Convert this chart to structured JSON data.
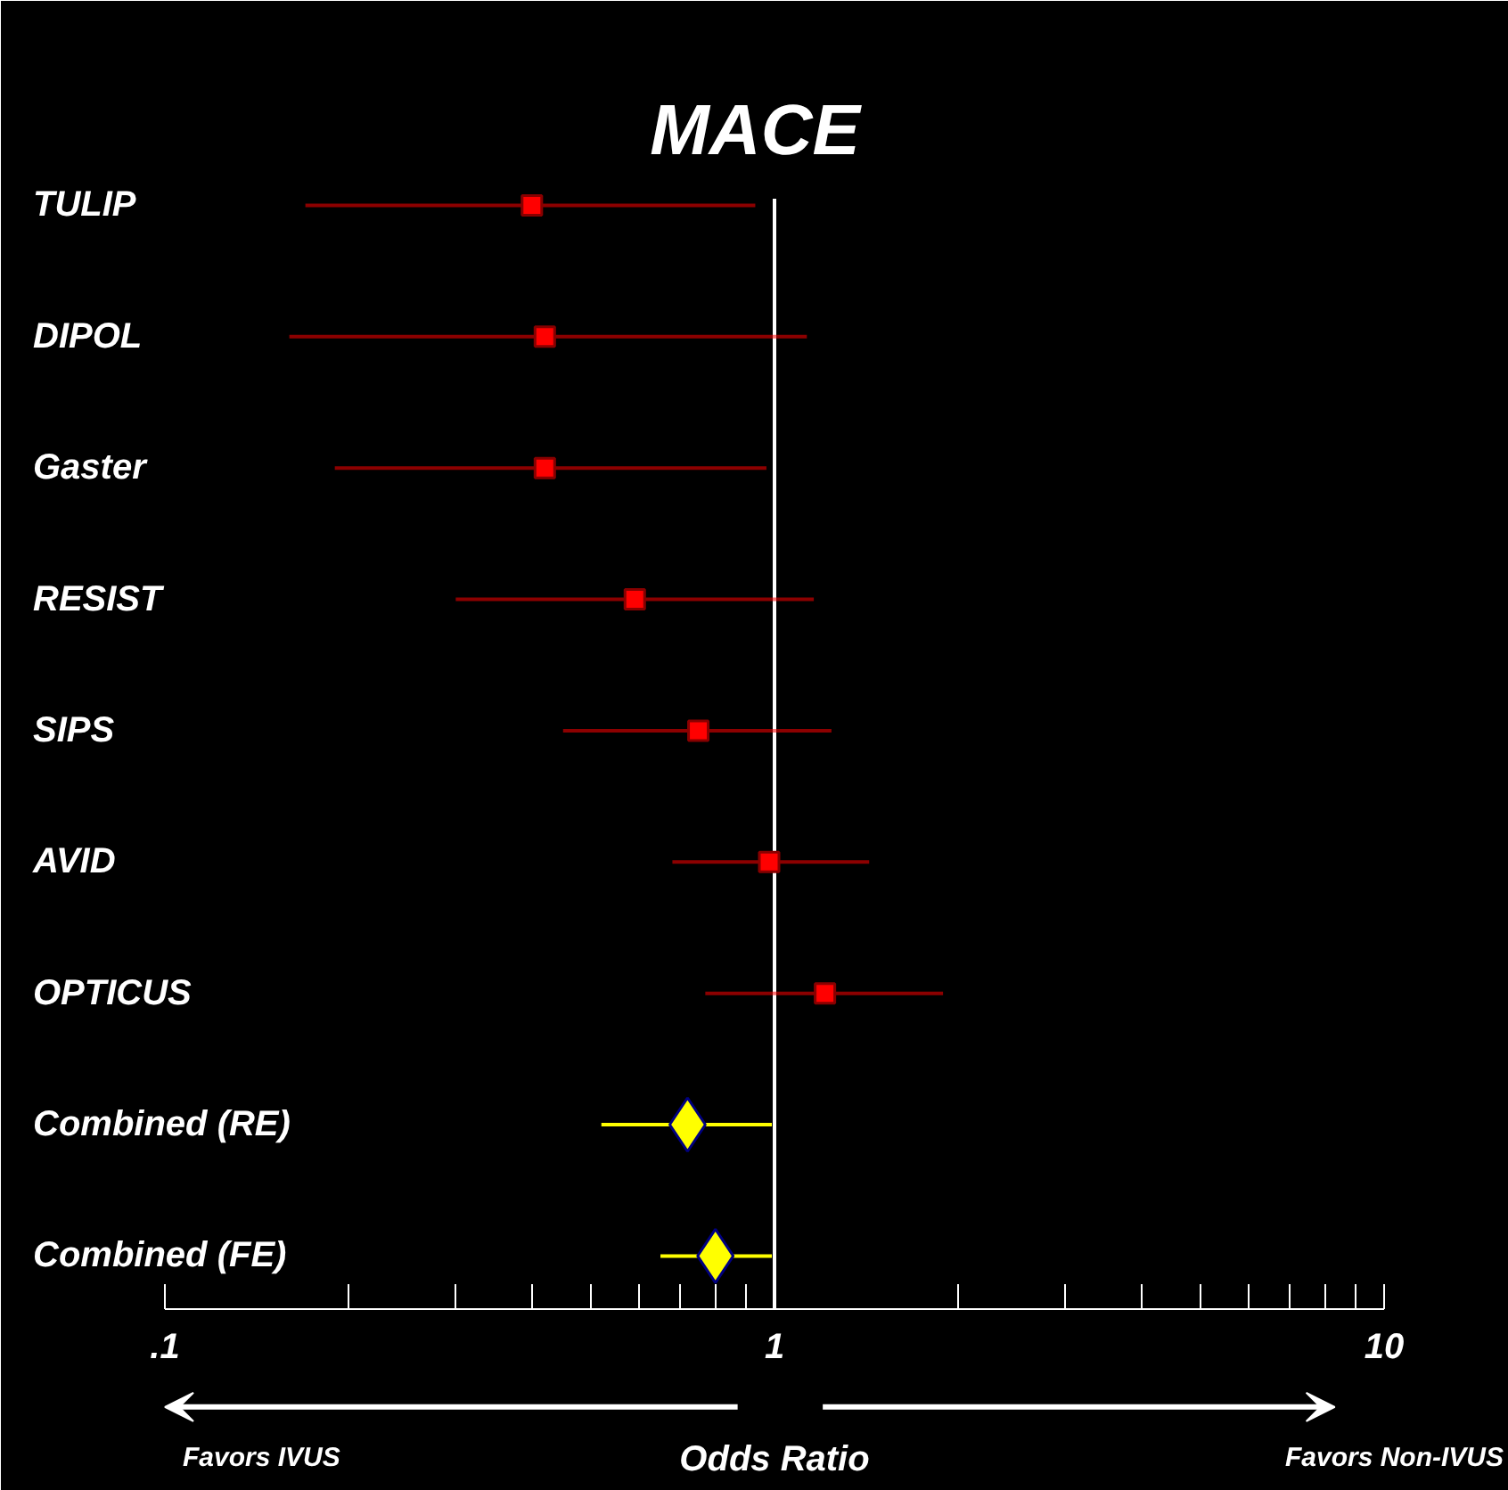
{
  "chart_data": {
    "type": "scatter",
    "orientation": "horizontal",
    "title": "MACE",
    "xlabel": "Odds Ratio",
    "categories": [
      "TULIP",
      "DIPOL",
      "Gaster",
      "RESIST",
      "SIPS",
      "AVID",
      "OPTICUS",
      "Combined (RE)",
      "Combined (FE)"
    ],
    "series": [
      {
        "color": "#ff0000",
        "marker": "square",
        "values": [
          0.4,
          0.42,
          0.42,
          0.59,
          0.75,
          0.98,
          1.21,
          null,
          null
        ],
        "errors": [
          [
            0.17,
            0.93
          ],
          [
            0.16,
            1.13
          ],
          [
            0.19,
            0.97
          ],
          [
            0.3,
            1.16
          ],
          [
            0.45,
            1.24
          ],
          [
            0.68,
            1.43
          ],
          [
            0.77,
            1.89
          ],
          null,
          null
        ]
      },
      {
        "color": "#ffff00",
        "marker": "diamond",
        "values": [
          null,
          null,
          null,
          null,
          null,
          null,
          null,
          0.72,
          0.8
        ],
        "errors": [
          null,
          null,
          null,
          null,
          null,
          null,
          null,
          [
            0.52,
            0.99
          ],
          [
            0.65,
            0.99
          ]
        ]
      }
    ],
    "log": "x",
    "xlim": [
      0.1,
      10
    ],
    "xticks": [
      {
        "value": 0.1,
        "label": ".1"
      },
      {
        "value": 0.2,
        "label": null
      },
      {
        "value": 0.3,
        "label": null
      },
      {
        "value": 0.4,
        "label": null
      },
      {
        "value": 0.5,
        "label": null
      },
      {
        "value": 0.6,
        "label": null
      },
      {
        "value": 0.7,
        "label": null
      },
      {
        "value": 0.8,
        "label": null
      },
      {
        "value": 0.9,
        "label": null
      },
      1,
      {
        "value": 2,
        "label": null
      },
      {
        "value": 3,
        "label": null
      },
      {
        "value": 4,
        "label": null
      },
      {
        "value": 5,
        "label": null
      },
      {
        "value": 6,
        "label": null
      },
      {
        "value": 7,
        "label": null
      },
      {
        "value": 8,
        "label": null
      },
      {
        "value": 9,
        "label": null
      },
      10
    ],
    "ref_lines": [
      {
        "axis": "x",
        "value": 1,
        "color": "#ffffff"
      }
    ],
    "annotations": [
      "Favors IVUS",
      "Favors Non-IVUS"
    ],
    "grid": false
  }
}
